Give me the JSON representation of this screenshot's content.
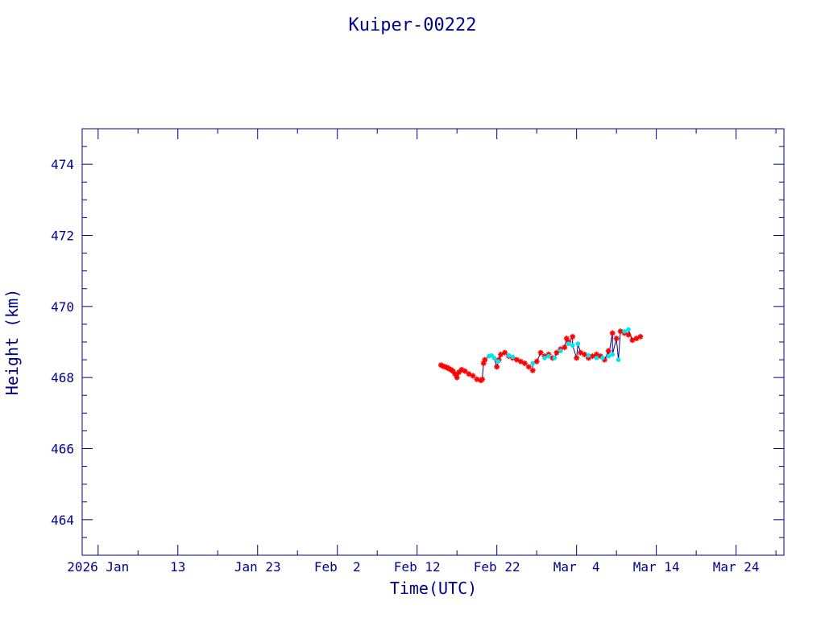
{
  "chart_data": {
    "type": "scatter",
    "title": "Kuiper-00222",
    "xlabel": "Time(UTC)",
    "ylabel": "Height (km)",
    "xlim": [
      "2026-01-01T00:00",
      "2026-03-30T00:00"
    ],
    "ylim": [
      463,
      475
    ],
    "x_tick_labels": [
      {
        "date": "2026-01-03",
        "label": "2026 Jan"
      },
      {
        "date": "2026-01-13",
        "label": "13"
      },
      {
        "date": "2026-01-23",
        "label": "Jan 23"
      },
      {
        "date": "2026-02-02",
        "label": "Feb  2"
      },
      {
        "date": "2026-02-12",
        "label": "Feb 12"
      },
      {
        "date": "2026-02-22",
        "label": "Feb 22"
      },
      {
        "date": "2026-03-04",
        "label": "Mar  4"
      },
      {
        "date": "2026-03-14",
        "label": "Mar 14"
      },
      {
        "date": "2026-03-24",
        "label": "Mar 24"
      }
    ],
    "y_tick_labels": [
      "464",
      "466",
      "468",
      "470",
      "472",
      "474"
    ],
    "y_ticks": [
      464,
      466,
      468,
      470,
      472,
      474
    ],
    "grid": false,
    "colors": {
      "axis": "#00008b",
      "line": "#00008b",
      "series_a": "#ff0000",
      "series_b": "#00e5ee"
    },
    "series": [
      {
        "marker": "asterisk",
        "color": "#ff0000",
        "x": [
          "2026-02-15T00:00",
          "2026-02-15T06:00",
          "2026-02-15T12:00",
          "2026-02-15T18:00",
          "2026-02-16T00:00",
          "2026-02-16T06:00",
          "2026-02-16T12:00",
          "2026-02-16T18:00",
          "2026-02-17T00:00",
          "2026-02-17T06:00",
          "2026-02-17T14:00",
          "2026-02-18T00:00",
          "2026-02-18T12:00",
          "2026-02-19T00:00",
          "2026-02-19T12:00",
          "2026-02-20T00:00",
          "2026-02-20T04:00",
          "2026-02-20T08:00",
          "2026-02-20T12:00",
          "2026-02-22T00:00",
          "2026-02-22T06:00",
          "2026-02-22T12:00",
          "2026-02-23T00:00",
          "2026-02-23T12:00",
          "2026-02-24T00:00",
          "2026-02-24T12:00",
          "2026-02-25T00:00",
          "2026-02-25T12:00",
          "2026-02-26T00:00",
          "2026-02-26T12:00",
          "2026-02-27T00:00",
          "2026-02-27T12:00",
          "2026-02-28T00:00",
          "2026-02-28T12:00",
          "2026-03-01T00:00",
          "2026-03-01T12:00",
          "2026-03-02T00:00",
          "2026-03-02T12:00",
          "2026-03-02T18:00",
          "2026-03-03T00:00",
          "2026-03-03T12:00",
          "2026-03-04T00:00",
          "2026-03-04T12:00",
          "2026-03-05T00:00",
          "2026-03-05T12:00",
          "2026-03-06T00:00",
          "2026-03-06T12:00",
          "2026-03-07T00:00",
          "2026-03-07T12:00",
          "2026-03-08T00:00",
          "2026-03-08T12:00",
          "2026-03-09T00:00",
          "2026-03-09T12:00",
          "2026-03-10T00:00",
          "2026-03-10T12:00",
          "2026-03-11T00:00",
          "2026-03-11T12:00",
          "2026-03-12T00:00"
        ],
        "y": [
          468.35,
          468.32,
          468.3,
          468.28,
          468.25,
          468.22,
          468.18,
          468.1,
          468.0,
          468.15,
          468.22,
          468.18,
          468.1,
          468.05,
          467.95,
          467.92,
          467.95,
          468.4,
          468.5,
          468.3,
          468.5,
          468.65,
          468.7,
          468.6,
          468.55,
          468.5,
          468.45,
          468.4,
          468.3,
          468.2,
          468.45,
          468.7,
          468.6,
          468.65,
          468.55,
          468.7,
          468.8,
          468.85,
          469.1,
          469.0,
          469.15,
          468.55,
          468.7,
          468.65,
          468.55,
          468.6,
          468.65,
          468.6,
          468.5,
          468.75,
          469.25,
          469.1,
          469.3,
          469.25,
          469.2,
          469.05,
          469.1,
          469.15
        ]
      },
      {
        "marker": "dot",
        "color": "#00e5ee",
        "x": [
          "2026-02-21T00:00",
          "2026-02-21T08:00",
          "2026-02-21T16:00",
          "2026-02-22T04:00",
          "2026-02-23T12:00",
          "2026-02-24T00:00",
          "2026-02-26T12:00",
          "2026-02-28T00:00",
          "2026-02-28T12:00",
          "2026-03-01T06:00",
          "2026-03-02T00:00",
          "2026-03-03T00:00",
          "2026-03-03T12:00",
          "2026-03-04T04:00",
          "2026-03-05T12:00",
          "2026-03-06T12:00",
          "2026-03-07T06:00",
          "2026-03-08T00:00",
          "2026-03-08T12:00",
          "2026-03-09T06:00",
          "2026-03-10T00:00",
          "2026-03-10T12:00"
        ],
        "y": [
          468.6,
          468.62,
          468.55,
          468.45,
          468.62,
          468.58,
          468.4,
          468.55,
          468.6,
          468.55,
          468.75,
          468.95,
          468.9,
          468.95,
          468.62,
          468.55,
          468.55,
          468.6,
          468.65,
          468.5,
          469.3,
          469.35
        ]
      }
    ]
  }
}
